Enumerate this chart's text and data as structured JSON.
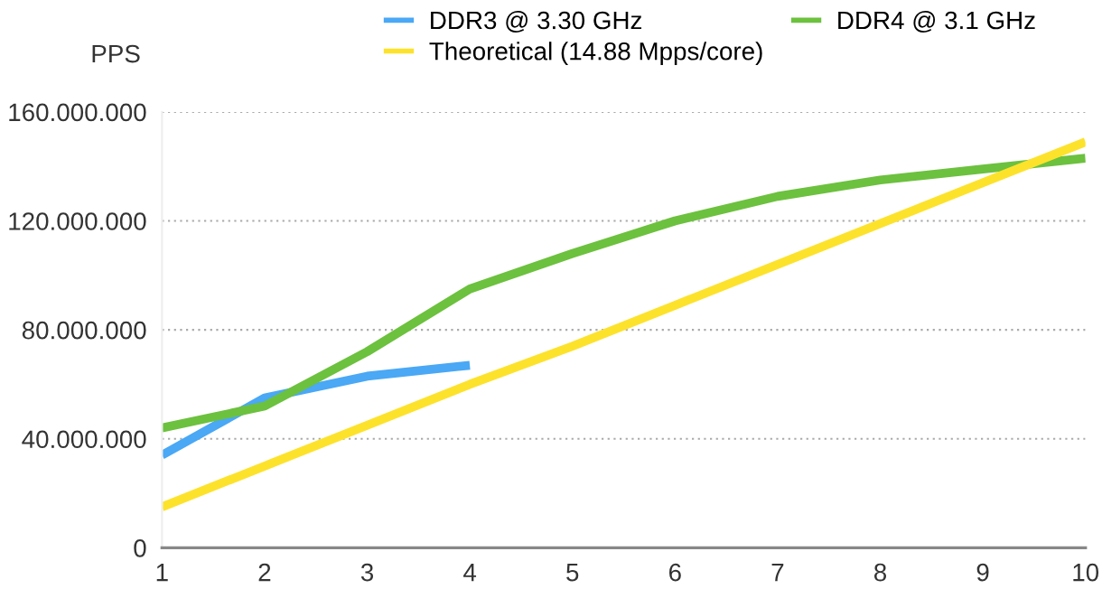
{
  "chart_data": {
    "type": "line",
    "ylabel": "PPS",
    "x": [
      1,
      2,
      3,
      4,
      5,
      6,
      7,
      8,
      9,
      10
    ],
    "series": [
      {
        "name": "DDR3 @ 3.30 GHz",
        "color": "#4aa8f5",
        "x": [
          1,
          2,
          3,
          4
        ],
        "values": [
          34000000,
          55000000,
          63000000,
          67000000
        ]
      },
      {
        "name": "DDR4 @ 3.1 GHz",
        "color": "#6cc13e",
        "values": [
          44000000,
          52000000,
          72000000,
          95000000,
          108000000,
          120000000,
          129000000,
          135000000,
          139000000,
          143000000
        ]
      },
      {
        "name": "Theoretical (14.88 Mpps/core)",
        "color": "#fde22c",
        "values": [
          15000000,
          30000000,
          45000000,
          60000000,
          74000000,
          89000000,
          104000000,
          119000000,
          134000000,
          149000000
        ]
      }
    ],
    "xlim": [
      1,
      10
    ],
    "xticks": [
      1,
      2,
      3,
      4,
      5,
      6,
      7,
      8,
      9,
      10
    ],
    "ylim": [
      0,
      160000000
    ],
    "yticks": [
      0,
      {
        "value": 40000000,
        "label": "40.000.000"
      },
      {
        "value": 80000000,
        "label": "80.000.000"
      },
      {
        "value": 120000000,
        "label": "120.000.000"
      },
      {
        "value": 160000000,
        "label": "160.000.000"
      }
    ],
    "grid": "y",
    "legend": "top",
    "marker": "none",
    "line_style": "solid"
  }
}
